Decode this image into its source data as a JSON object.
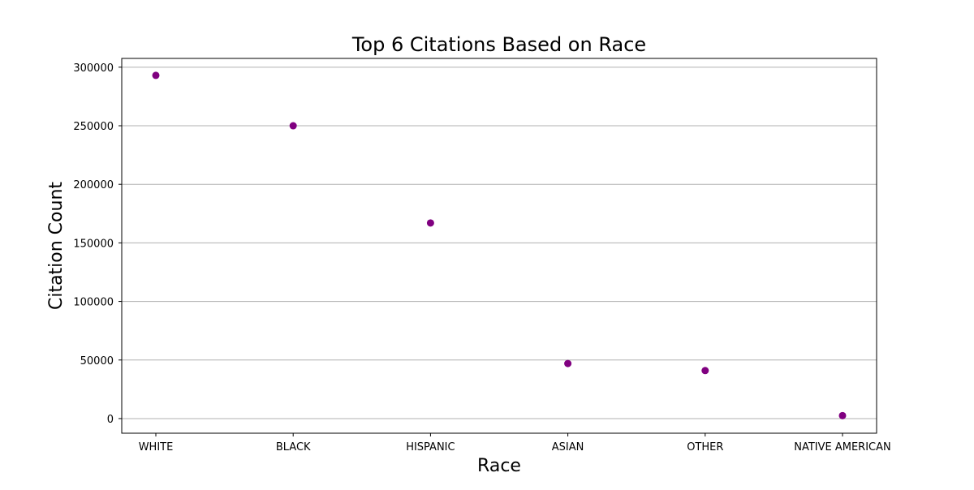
{
  "chart_data": {
    "type": "scatter",
    "title": "Top 6 Citations Based on Race",
    "xlabel": "Race",
    "ylabel": "Citation Count",
    "categories": [
      "WHITE",
      "BLACK",
      "HISPANIC",
      "ASIAN",
      "OTHER",
      "NATIVE AMERICAN"
    ],
    "series": [
      {
        "values": [
          293000,
          250000,
          167000,
          47000,
          41000,
          2500
        ]
      }
    ],
    "ylim": [
      -12500,
      307500
    ],
    "yticks": [
      0,
      50000,
      100000,
      150000,
      200000,
      250000,
      300000
    ],
    "grid": "horizontal",
    "marker_color": "#800080"
  }
}
